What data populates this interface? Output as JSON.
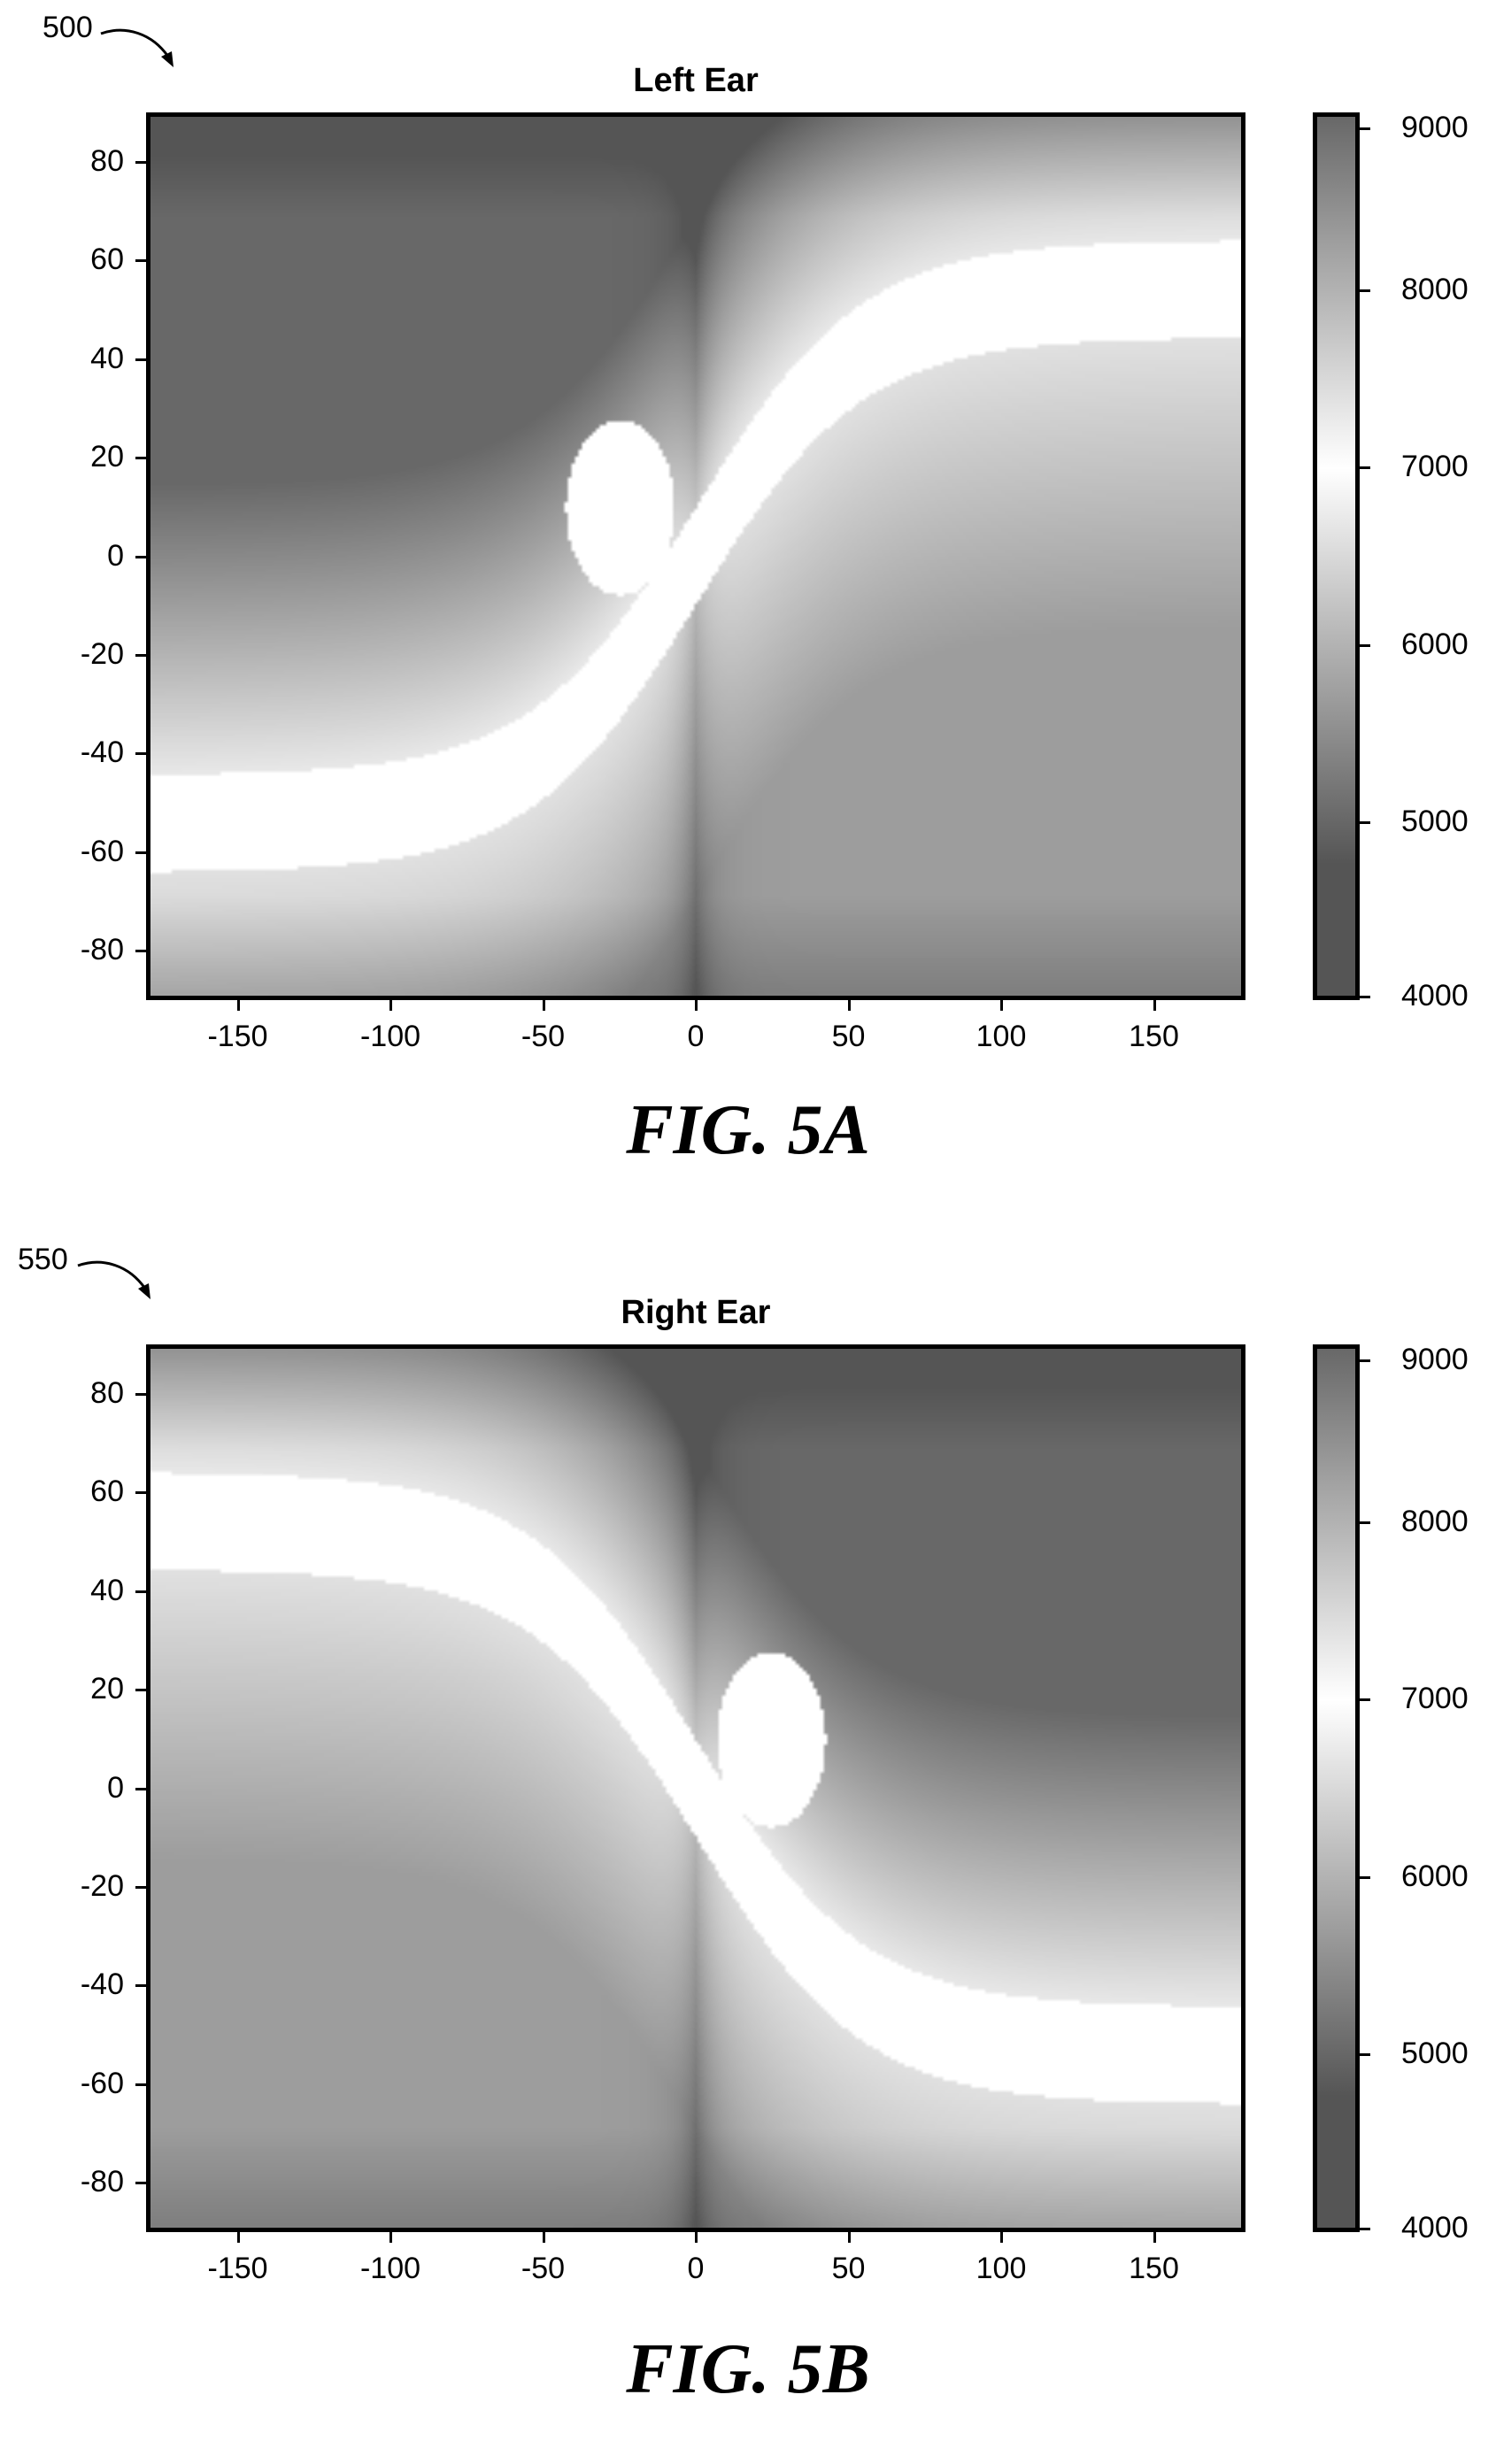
{
  "figures": [
    {
      "ref": "500",
      "caption": "FIG. 5A"
    },
    {
      "ref": "550",
      "caption": "FIG. 5B"
    }
  ],
  "chart_data": [
    {
      "type": "heatmap",
      "title": "Left Ear",
      "xlabel": "",
      "ylabel": "",
      "xlim": [
        -180,
        180
      ],
      "ylim": [
        -90,
        90
      ],
      "x_ticks": [
        "-150",
        "-100",
        "-50",
        "0",
        "50",
        "100",
        "150"
      ],
      "y_ticks": [
        "80",
        "60",
        "40",
        "20",
        "0",
        "-20",
        "-40",
        "-60",
        "-80"
      ],
      "colorbar": {
        "range": [
          4000,
          9000
        ],
        "ticks": [
          "9000",
          "8000",
          "7000",
          "6000",
          "5000",
          "4000"
        ]
      },
      "colormap": "grayscale, white band near 6500-7500",
      "description_points": {
        "white_band": "S-shaped band from (-180,-55) through (0,0) to (180,55)",
        "white_blob_center": [
          -25,
          10
        ]
      }
    },
    {
      "type": "heatmap",
      "title": "Right Ear",
      "xlabel": "",
      "ylabel": "",
      "xlim": [
        -180,
        180
      ],
      "ylim": [
        -90,
        90
      ],
      "x_ticks": [
        "-150",
        "-100",
        "-50",
        "0",
        "50",
        "100",
        "150"
      ],
      "y_ticks": [
        "80",
        "60",
        "40",
        "20",
        "0",
        "-20",
        "-40",
        "-60",
        "-80"
      ],
      "colorbar": {
        "range": [
          4000,
          9000
        ],
        "ticks": [
          "9000",
          "8000",
          "7000",
          "6000",
          "5000",
          "4000"
        ]
      },
      "colormap": "grayscale, white band near 6500-7500",
      "description_points": {
        "white_band": "S-shaped band from (-180,55) through (0,0) to (180,-55)",
        "white_blob_center": [
          25,
          10
        ]
      }
    }
  ]
}
